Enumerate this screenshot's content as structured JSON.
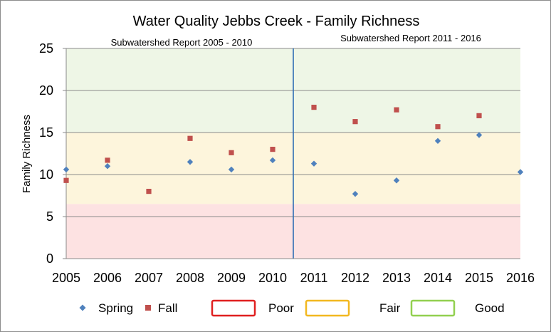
{
  "chart_data": {
    "type": "scatter",
    "title": "Water Quality Jebbs Creek - Family Richness",
    "ylabel": "Family Richness",
    "xlabel": "",
    "x_categories": [
      "2005",
      "2006",
      "2007",
      "2008",
      "2009",
      "2010",
      "2011",
      "2012",
      "2013",
      "2014",
      "2015",
      "2016"
    ],
    "ylim": [
      0,
      25
    ],
    "yticks": [
      "0",
      "5",
      "10",
      "15",
      "20",
      "25"
    ],
    "grid": true,
    "divider_after": "2010",
    "annotations": [
      {
        "text": "Subwatershed  Report 2005 - 2010",
        "region": "left"
      },
      {
        "text": "Subwatershed  Report 2011  - 2016",
        "region": "right"
      }
    ],
    "bands": [
      {
        "name": "Poor",
        "from": 0,
        "to": 6.5,
        "fill": "#fde2e2",
        "edge": "#e02020"
      },
      {
        "name": "Fair",
        "from": 6.5,
        "to": 15,
        "fill": "#fdf5dc",
        "edge": "#f2b820"
      },
      {
        "name": "Good",
        "from": 15,
        "to": 25,
        "fill": "#eef6e6",
        "edge": "#92d050"
      }
    ],
    "series": [
      {
        "name": "Spring",
        "marker": "diamond",
        "color": "#4f81bd",
        "points": [
          {
            "x": "2005",
            "y": 10.6
          },
          {
            "x": "2006",
            "y": 11.0
          },
          {
            "x": "2008",
            "y": 11.5
          },
          {
            "x": "2009",
            "y": 10.6
          },
          {
            "x": "2010",
            "y": 11.7
          },
          {
            "x": "2011",
            "y": 11.3
          },
          {
            "x": "2012",
            "y": 7.7
          },
          {
            "x": "2013",
            "y": 9.3
          },
          {
            "x": "2014",
            "y": 14.0
          },
          {
            "x": "2015",
            "y": 14.7
          },
          {
            "x": "2016",
            "y": 10.3
          }
        ]
      },
      {
        "name": "Fall",
        "marker": "square",
        "color": "#c0504d",
        "points": [
          {
            "x": "2005",
            "y": 9.3
          },
          {
            "x": "2006",
            "y": 11.7
          },
          {
            "x": "2007",
            "y": 8.0
          },
          {
            "x": "2008",
            "y": 14.3
          },
          {
            "x": "2009",
            "y": 12.6
          },
          {
            "x": "2010",
            "y": 13.0
          },
          {
            "x": "2011",
            "y": 18.0
          },
          {
            "x": "2012",
            "y": 16.3
          },
          {
            "x": "2013",
            "y": 17.7
          },
          {
            "x": "2014",
            "y": 15.7
          },
          {
            "x": "2015",
            "y": 17.0
          }
        ]
      }
    ],
    "legend": {
      "placement": "bottom"
    }
  }
}
